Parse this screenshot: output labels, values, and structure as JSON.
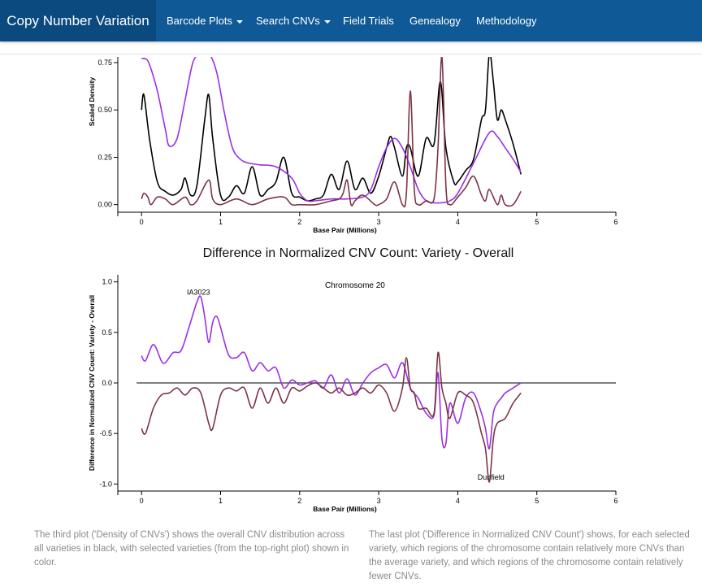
{
  "navbar": {
    "brand": "Copy Number Variation",
    "items": [
      {
        "label": "Barcode Plots",
        "dropdown": true
      },
      {
        "label": "Search CNVs",
        "dropdown": true
      },
      {
        "label": "Field Trials",
        "dropdown": false
      },
      {
        "label": "Genealogy",
        "dropdown": false
      },
      {
        "label": "Methodology",
        "dropdown": false
      }
    ]
  },
  "captions": {
    "left": "The third plot ('Density of CNVs') shows the overall CNV distribution across all varieties in black, with selected varieties (from the top-right plot) shown in color.",
    "right": "The last plot ('Difference in Normalized CNV Count') shows, for each selected variety, which regions of the chromosome contain relatively more CNVs than the average variety, and which regions of the chromosome contain relatively fewer CNVs."
  },
  "chart_data": [
    {
      "type": "line",
      "title": "",
      "xlabel": "Base Pair (Millions)",
      "ylabel": "Scaled Density",
      "xlim": [
        -0.3,
        6
      ],
      "ylim": [
        -0.04,
        0.78
      ],
      "xticks": [
        "0",
        "1",
        "2",
        "3",
        "4",
        "5",
        "6"
      ],
      "yticks": [
        "0.00",
        "0.25",
        "0.50",
        "0.75"
      ],
      "colors": {
        "overall": "#000000",
        "purple": "#9b30e6",
        "brown": "#7b3445"
      },
      "series": [
        {
          "key": "overall",
          "x": [
            0,
            0.03,
            0.1,
            0.2,
            0.3,
            0.4,
            0.5,
            0.55,
            0.62,
            0.7,
            0.8,
            0.85,
            0.9,
            1.0,
            1.1,
            1.2,
            1.3,
            1.4,
            1.5,
            1.6,
            1.7,
            1.8,
            1.9,
            2.0,
            2.1,
            2.2,
            2.3,
            2.4,
            2.5,
            2.6,
            2.7,
            2.8,
            2.9,
            3.0,
            3.1,
            3.15,
            3.2,
            3.3,
            3.35,
            3.4,
            3.5,
            3.6,
            3.7,
            3.78,
            3.85,
            3.95,
            4.0,
            4.1,
            4.2,
            4.3,
            4.35,
            4.4,
            4.45,
            4.5,
            4.55,
            4.6,
            4.7,
            4.8
          ],
          "y": [
            0.5,
            0.58,
            0.35,
            0.12,
            0.07,
            0.05,
            0.08,
            0.14,
            0.05,
            0.1,
            0.45,
            0.58,
            0.35,
            0.05,
            0.04,
            0.1,
            0.06,
            0.2,
            0.05,
            0.08,
            0.12,
            0.25,
            0.06,
            0.04,
            0.02,
            0.03,
            0.05,
            0.16,
            0.08,
            0.23,
            0.08,
            0.14,
            0.06,
            0.15,
            0.3,
            0.36,
            0.3,
            0.15,
            0.3,
            0.3,
            0.15,
            0.35,
            0.32,
            0.65,
            0.3,
            0.12,
            0.12,
            0.18,
            0.24,
            0.45,
            0.5,
            0.8,
            0.65,
            0.45,
            0.5,
            0.45,
            0.32,
            0.16
          ]
        },
        {
          "key": "purple",
          "x": [
            0,
            0.05,
            0.1,
            0.2,
            0.3,
            0.35,
            0.45,
            0.55,
            0.65,
            0.75,
            0.85,
            0.95,
            1.05,
            1.15,
            1.25,
            1.35,
            1.5,
            1.7,
            1.9,
            2.0,
            2.1,
            2.2,
            2.4,
            2.6,
            2.8,
            2.9,
            3.0,
            3.1,
            3.2,
            3.3,
            3.4,
            3.5,
            3.6,
            3.7,
            3.8,
            3.9,
            4.0,
            4.2,
            4.4,
            4.5,
            4.6,
            4.7,
            4.8
          ],
          "y": [
            0.77,
            0.77,
            0.74,
            0.6,
            0.4,
            0.31,
            0.35,
            0.55,
            0.75,
            0.8,
            0.8,
            0.7,
            0.48,
            0.3,
            0.24,
            0.22,
            0.21,
            0.2,
            0.14,
            0.06,
            0.02,
            0.02,
            0.03,
            0.03,
            0.04,
            0.08,
            0.2,
            0.3,
            0.35,
            0.3,
            0.2,
            0.08,
            0.02,
            0.01,
            0.01,
            0.02,
            0.06,
            0.22,
            0.38,
            0.36,
            0.3,
            0.24,
            0.17
          ]
        },
        {
          "key": "brown",
          "x": [
            0,
            0.03,
            0.08,
            0.12,
            0.2,
            0.3,
            0.4,
            0.55,
            0.62,
            0.7,
            0.85,
            0.9,
            1.0,
            1.2,
            1.4,
            1.6,
            1.8,
            1.9,
            2.0,
            2.2,
            2.4,
            2.5,
            2.55,
            2.6,
            2.65,
            2.7,
            2.8,
            2.95,
            3.0,
            3.1,
            3.2,
            3.3,
            3.35,
            3.4,
            3.45,
            3.5,
            3.6,
            3.7,
            3.75,
            3.8,
            3.85,
            3.9,
            4.0,
            4.1,
            4.2,
            4.3,
            4.35,
            4.4,
            4.5,
            4.55,
            4.6,
            4.7,
            4.8
          ],
          "y": [
            0.03,
            0.06,
            0.04,
            0.0,
            0.04,
            0.03,
            0.0,
            0.04,
            0.0,
            0.02,
            0.13,
            0.03,
            0.0,
            0.03,
            0.0,
            0.03,
            0.04,
            0.0,
            0.0,
            0.0,
            0.02,
            0.03,
            0.06,
            0.13,
            0.0,
            0.02,
            0.05,
            0.0,
            0.0,
            0.03,
            0.12,
            0.0,
            0.06,
            0.6,
            0.08,
            0.0,
            0.02,
            0.03,
            0.3,
            0.78,
            0.1,
            0.0,
            0.04,
            0.09,
            0.15,
            0.05,
            0.02,
            0.08,
            0.0,
            0.05,
            0.0,
            0.0,
            0.07
          ]
        }
      ]
    },
    {
      "type": "line",
      "title": "Difference in Normalized CNV Count: Variety - Overall",
      "subtitle": "Chromosome 20",
      "xlabel": "Base Pair (Millions)",
      "ylabel": "Difference in Normalized CNV Count: Variety - Overall",
      "xlim": [
        -0.3,
        6
      ],
      "ylim": [
        -1.07,
        1.07
      ],
      "xticks": [
        "0",
        "1",
        "2",
        "3",
        "4",
        "5",
        "6"
      ],
      "yticks": [
        "-1.0",
        "-0.5",
        "0.0",
        "0.5",
        "1.0"
      ],
      "zero_line": true,
      "colors": {
        "zero": "#333333",
        "purple": "#9b30e6",
        "brown": "#7b3445"
      },
      "annotations": [
        {
          "text": "IA3023",
          "x": 0.72,
          "y": 0.85
        },
        {
          "text": "Dunfield",
          "x": 4.42,
          "y": -0.98
        }
      ],
      "series": [
        {
          "key": "purple",
          "x": [
            0,
            0.05,
            0.15,
            0.25,
            0.3,
            0.4,
            0.5,
            0.6,
            0.7,
            0.75,
            0.8,
            0.85,
            0.9,
            0.95,
            1.0,
            1.1,
            1.2,
            1.3,
            1.4,
            1.5,
            1.6,
            1.7,
            1.8,
            1.9,
            2.0,
            2.1,
            2.2,
            2.3,
            2.4,
            2.5,
            2.6,
            2.7,
            2.8,
            2.9,
            3.0,
            3.1,
            3.2,
            3.3,
            3.4,
            3.5,
            3.6,
            3.7,
            3.75,
            3.8,
            3.85,
            3.9,
            4.0,
            4.1,
            4.2,
            4.3,
            4.35,
            4.4,
            4.45,
            4.5,
            4.55,
            4.6,
            4.7,
            4.8
          ],
          "y": [
            0.27,
            0.22,
            0.38,
            0.22,
            0.2,
            0.3,
            0.32,
            0.55,
            0.8,
            0.85,
            0.65,
            0.4,
            0.6,
            0.66,
            0.55,
            0.28,
            0.25,
            0.3,
            0.12,
            0.2,
            0.12,
            0.15,
            -0.05,
            0.03,
            -0.02,
            0.0,
            0.02,
            -0.05,
            0.08,
            -0.1,
            0.04,
            -0.12,
            0.0,
            0.1,
            0.15,
            0.18,
            0.05,
            0.2,
            -0.05,
            -0.15,
            -0.3,
            -0.32,
            0.1,
            -0.55,
            -0.6,
            -0.2,
            -0.4,
            -0.15,
            -0.1,
            -0.3,
            -0.45,
            -0.65,
            -0.3,
            -0.2,
            -0.15,
            -0.1,
            -0.05,
            0.0
          ]
        },
        {
          "key": "brown",
          "x": [
            0,
            0.05,
            0.15,
            0.25,
            0.35,
            0.45,
            0.55,
            0.65,
            0.75,
            0.85,
            0.9,
            1.0,
            1.1,
            1.2,
            1.3,
            1.4,
            1.5,
            1.6,
            1.7,
            1.8,
            1.9,
            2.0,
            2.1,
            2.2,
            2.3,
            2.4,
            2.5,
            2.6,
            2.7,
            2.8,
            2.9,
            3.0,
            3.1,
            3.2,
            3.3,
            3.35,
            3.4,
            3.45,
            3.5,
            3.6,
            3.7,
            3.75,
            3.8,
            3.85,
            3.9,
            4.0,
            4.1,
            4.2,
            4.3,
            4.35,
            4.4,
            4.45,
            4.5,
            4.6,
            4.7,
            4.8
          ],
          "y": [
            -0.45,
            -0.5,
            -0.25,
            -0.12,
            -0.1,
            -0.05,
            -0.12,
            -0.05,
            -0.1,
            -0.4,
            -0.45,
            -0.12,
            -0.05,
            -0.08,
            -0.05,
            -0.25,
            -0.05,
            -0.2,
            -0.05,
            -0.2,
            -0.05,
            -0.08,
            -0.03,
            0.0,
            -0.05,
            -0.1,
            -0.05,
            -0.12,
            -0.1,
            -0.05,
            -0.1,
            -0.02,
            -0.1,
            -0.28,
            -0.05,
            0.25,
            -0.05,
            -0.1,
            -0.25,
            -0.25,
            -0.3,
            0.3,
            -0.05,
            -0.2,
            -0.35,
            -0.1,
            -0.12,
            -0.2,
            -0.5,
            -0.65,
            -0.98,
            -0.55,
            -0.4,
            -0.35,
            -0.2,
            -0.1
          ]
        }
      ]
    }
  ]
}
